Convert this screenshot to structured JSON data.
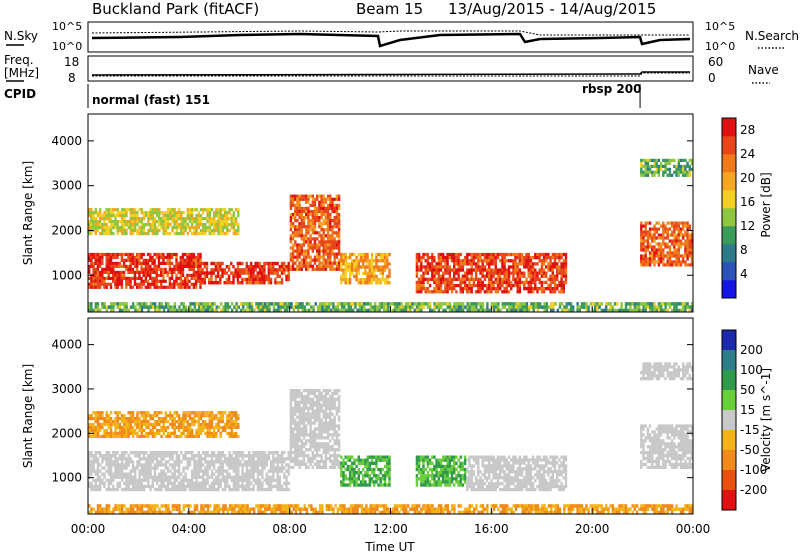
{
  "header": {
    "site": "Buckland Park (fitACF)",
    "beam": "Beam 15",
    "dates": "13/Aug/2015 - 14/Aug/2015"
  },
  "summary_panel": {
    "left_label": "N.Sky",
    "right_label": "N.Search",
    "left_ticks": [
      "10^5",
      "10^0"
    ],
    "right_ticks": [
      "10^5",
      "10^0"
    ]
  },
  "freq_panel": {
    "left_label_top": "Freq.",
    "left_label_bottom": "[MHz]",
    "left_ticks": [
      "18",
      "8"
    ],
    "right_label": "Nave",
    "right_ticks": [
      "60",
      "0"
    ]
  },
  "cpid_panel": {
    "label": "CPID",
    "modes": [
      {
        "name": "normal (fast) 151",
        "start_hour": 0
      },
      {
        "name": "rbsp 200",
        "start_hour": 21.9
      }
    ]
  },
  "chart_data": [
    {
      "type": "heatmap",
      "quantity": "Power",
      "ylabel": "Slant Range [km]",
      "xlabel": "",
      "x_range_hours": [
        0,
        24
      ],
      "ylim": [
        180,
        4600
      ],
      "yticks": [
        1000,
        2000,
        3000,
        4000
      ],
      "colorbar": {
        "label": "Power [dB]",
        "ticks": [
          4,
          8,
          12,
          16,
          20,
          24,
          28
        ],
        "range": [
          0,
          30
        ],
        "colors": [
          "#1414e6",
          "#2a52b8",
          "#2f7a8a",
          "#3b9a5a",
          "#8ec63f",
          "#f5d020",
          "#f5a623",
          "#f07a1a",
          "#e8451a",
          "#e01010"
        ]
      },
      "echo_regions": [
        {
          "start": 0.0,
          "end": 4.5,
          "range_low": 700,
          "range_high": 1500,
          "power": 27
        },
        {
          "start": 4.5,
          "end": 8.0,
          "range_low": 800,
          "range_high": 1300,
          "power": 27
        },
        {
          "start": 8.0,
          "end": 10.0,
          "range_low": 1100,
          "range_high": 2800,
          "power": 24
        },
        {
          "start": 0.0,
          "end": 6.0,
          "range_low": 1900,
          "range_high": 2500,
          "power": 16
        },
        {
          "start": 10.0,
          "end": 12.0,
          "range_low": 800,
          "range_high": 1500,
          "power": 20
        },
        {
          "start": 13.0,
          "end": 19.0,
          "range_low": 600,
          "range_high": 1500,
          "power": 26
        },
        {
          "start": 21.9,
          "end": 24.0,
          "range_low": 1200,
          "range_high": 2200,
          "power": 24
        },
        {
          "start": 21.9,
          "end": 24.0,
          "range_low": 3200,
          "range_high": 3600,
          "power": 12
        },
        {
          "start": 0.0,
          "end": 24.0,
          "range_low": 180,
          "range_high": 400,
          "power": 12
        }
      ]
    },
    {
      "type": "heatmap",
      "quantity": "Velocity",
      "ylabel": "Slant Range [km]",
      "xlabel": "Time UT",
      "x_range_hours": [
        0,
        24
      ],
      "xticks": [
        "00:00",
        "04:00",
        "08:00",
        "12:00",
        "16:00",
        "20:00",
        "00:00"
      ],
      "ylim": [
        180,
        4600
      ],
      "yticks": [
        1000,
        2000,
        3000,
        4000
      ],
      "colorbar": {
        "label": "Velocity [m s^-1]",
        "ticks": [
          200,
          100,
          50,
          15,
          -15,
          -50,
          -100,
          -200
        ],
        "colors": [
          "#1a2aa8",
          "#2f7d8a",
          "#2f9a4a",
          "#6acd3a",
          "#c8c8c8",
          "#f5b31a",
          "#f08a1a",
          "#e85010",
          "#e01010"
        ]
      },
      "echo_regions": [
        {
          "start": 0.0,
          "end": 8.0,
          "range_low": 700,
          "range_high": 1600,
          "velocity": 0
        },
        {
          "start": 8.0,
          "end": 10.0,
          "range_low": 1200,
          "range_high": 3000,
          "velocity": 0
        },
        {
          "start": 10.0,
          "end": 12.0,
          "range_low": 800,
          "range_high": 1500,
          "velocity": 50
        },
        {
          "start": 13.0,
          "end": 15.0,
          "range_low": 800,
          "range_high": 1500,
          "velocity": 50
        },
        {
          "start": 15.0,
          "end": 19.0,
          "range_low": 700,
          "range_high": 1500,
          "velocity": 0
        },
        {
          "start": 0.0,
          "end": 6.0,
          "range_low": 1900,
          "range_high": 2500,
          "velocity": -50
        },
        {
          "start": 21.9,
          "end": 24.0,
          "range_low": 1200,
          "range_high": 2200,
          "velocity": 0
        },
        {
          "start": 21.9,
          "end": 24.0,
          "range_low": 3200,
          "range_high": 3600,
          "velocity": 0
        },
        {
          "start": 0.0,
          "end": 24.0,
          "range_low": 180,
          "range_high": 400,
          "velocity": -50
        }
      ]
    }
  ]
}
